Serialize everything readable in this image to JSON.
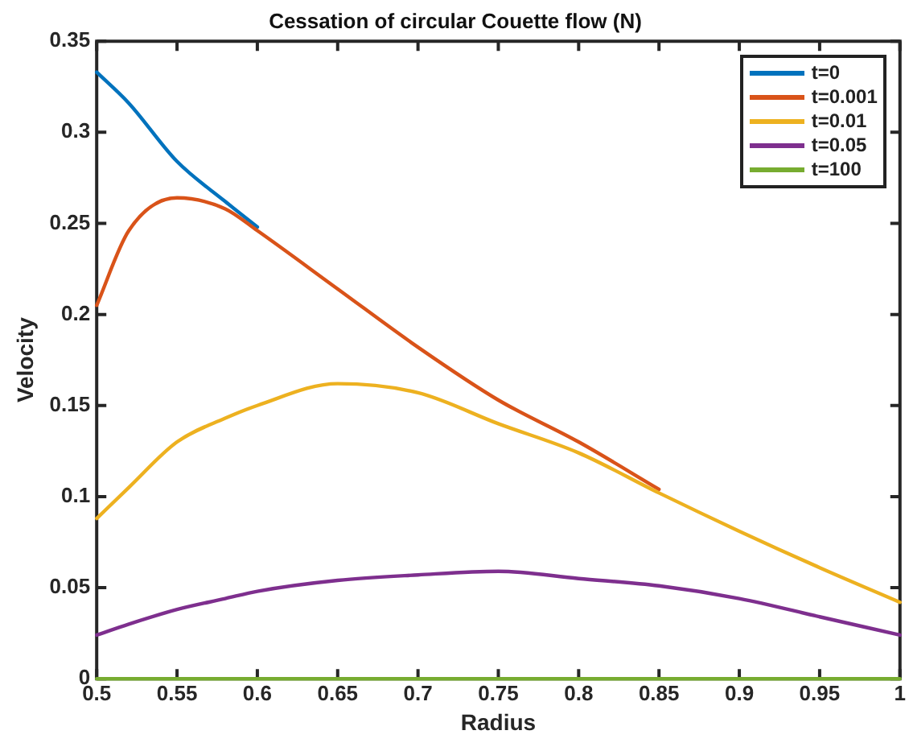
{
  "chart_data": {
    "type": "line",
    "title": "Cessation of circular Couette flow (N)",
    "xlabel": "Radius",
    "ylabel": "Velocity",
    "x": [
      0.5,
      0.52,
      0.55,
      0.58,
      0.6,
      0.65,
      0.7,
      0.75,
      0.8,
      0.85,
      0.9,
      0.95,
      1
    ],
    "series": [
      {
        "name": "t=0",
        "color": "#0072bd",
        "values": [
          0.333,
          0.316,
          0.284,
          0.262,
          0.248,
          null,
          null,
          null,
          null,
          null,
          null,
          null,
          null
        ]
      },
      {
        "name": "t=0.001",
        "color": "#d95319",
        "values": [
          0.205,
          0.246,
          0.264,
          0.258,
          0.246,
          0.214,
          0.182,
          0.153,
          0.13,
          0.104,
          null,
          null,
          null
        ]
      },
      {
        "name": "t=0.01",
        "color": "#edb120",
        "values": [
          0.088,
          0.105,
          0.13,
          0.143,
          0.15,
          0.162,
          0.157,
          0.14,
          0.124,
          0.102,
          0.081,
          0.061,
          0.042
        ]
      },
      {
        "name": "t=0.05",
        "color": "#7e2f8e",
        "values": [
          0.024,
          0.03,
          0.038,
          0.044,
          0.048,
          0.054,
          0.057,
          0.059,
          0.055,
          0.051,
          0.044,
          0.034,
          0.024
        ]
      },
      {
        "name": "t=100",
        "color": "#77ac30",
        "values": [
          0,
          0,
          0,
          0,
          0,
          0,
          0,
          0,
          0,
          0,
          0,
          0,
          0
        ]
      }
    ],
    "xlim": [
      0.5,
      1
    ],
    "xticks": [
      0.5,
      0.55,
      0.6,
      0.65,
      0.7,
      0.75,
      0.8,
      0.85,
      0.9,
      0.95,
      1
    ],
    "ylim": [
      0,
      0.35
    ],
    "yticks": [
      0,
      0.05,
      0.1,
      0.15,
      0.2,
      0.25,
      0.3,
      0.35
    ],
    "legend": "top right",
    "marker": "none",
    "line_style": "solid"
  }
}
